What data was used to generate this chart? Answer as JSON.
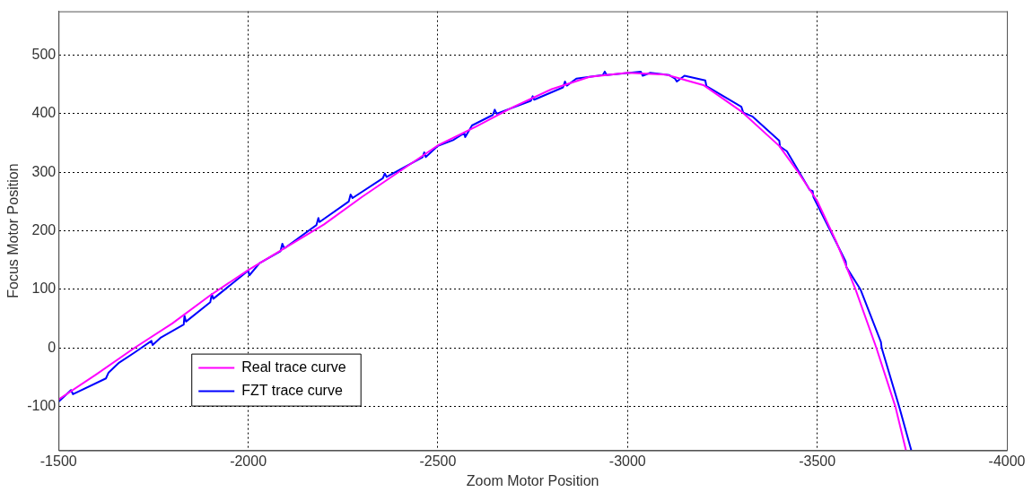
{
  "chart_data": {
    "type": "line",
    "xlabel": "Zoom Motor Position",
    "ylabel": "Focus Motor Position",
    "xlim": [
      -1500,
      -4000
    ],
    "xticks": [
      -1500,
      -2000,
      -2500,
      -3000,
      -3500,
      -4000
    ],
    "ylim": [
      -175,
      575
    ],
    "yticks": [
      -100,
      0,
      100,
      200,
      300,
      400,
      500
    ],
    "grid": true,
    "legend": "bottom left",
    "line_style": "solid",
    "marker": "none",
    "series": [
      {
        "name": "Real trace curve",
        "color": "#ff00ff",
        "x": [
          -1500,
          -1600,
          -1700,
          -1800,
          -1900,
          -2000,
          -2100,
          -2200,
          -2300,
          -2400,
          -2500,
          -2600,
          -2700,
          -2800,
          -2900,
          -3000,
          -3100,
          -3200,
          -3300,
          -3400,
          -3450,
          -3500,
          -3550,
          -3601,
          -3656,
          -3706,
          -3734
        ],
        "values": [
          -88,
          -45,
          0,
          42,
          90,
          133,
          172,
          211,
          258,
          302,
          346,
          378,
          412,
          442,
          463,
          470,
          467,
          449,
          404,
          345,
          300,
          251,
          182,
          100,
          0,
          -100,
          -175
        ]
      },
      {
        "name": "FZT trace curve",
        "color": "#0000ff",
        "x": [
          -1500,
          -1533,
          -1538,
          -1625,
          -1632,
          -1660,
          -1700,
          -1745,
          -1748,
          -1770,
          -1830,
          -1832,
          -1836,
          -1900,
          -1904,
          -1908,
          -2000,
          -2003,
          -2030,
          -2085,
          -2090,
          -2095,
          -2180,
          -2185,
          -2188,
          -2265,
          -2270,
          -2275,
          -2355,
          -2360,
          -2365,
          -2460,
          -2464,
          -2468,
          -2500,
          -2540,
          -2570,
          -2572,
          -2590,
          -2645,
          -2650,
          -2655,
          -2745,
          -2750,
          -2754,
          -2830,
          -2835,
          -2840,
          -2865,
          -2935,
          -2940,
          -2945,
          -3035,
          -3040,
          -3060,
          -3110,
          -3125,
          -3130,
          -3150,
          -3205,
          -3208,
          -3300,
          -3305,
          -3330,
          -3400,
          -3402,
          -3420,
          -3480,
          -3488,
          -3490,
          -3575,
          -3577,
          -3614,
          -3668,
          -3670,
          -3716,
          -3748
        ],
        "values": [
          -92,
          -72,
          -79,
          -52,
          -42,
          -25,
          -8,
          12,
          5,
          18,
          40,
          55,
          45,
          78,
          92,
          84,
          132,
          124,
          145,
          165,
          178,
          170,
          210,
          222,
          215,
          250,
          262,
          256,
          290,
          298,
          292,
          326,
          334,
          326,
          345,
          355,
          367,
          360,
          380,
          398,
          407,
          400,
          422,
          430,
          424,
          445,
          455,
          448,
          460,
          466,
          472,
          466,
          472,
          465,
          470,
          466,
          460,
          455,
          465,
          457,
          447,
          412,
          402,
          395,
          354,
          344,
          336,
          270,
          268,
          258,
          148,
          138,
          100,
          10,
          0,
          -100,
          -175
        ]
      }
    ]
  }
}
